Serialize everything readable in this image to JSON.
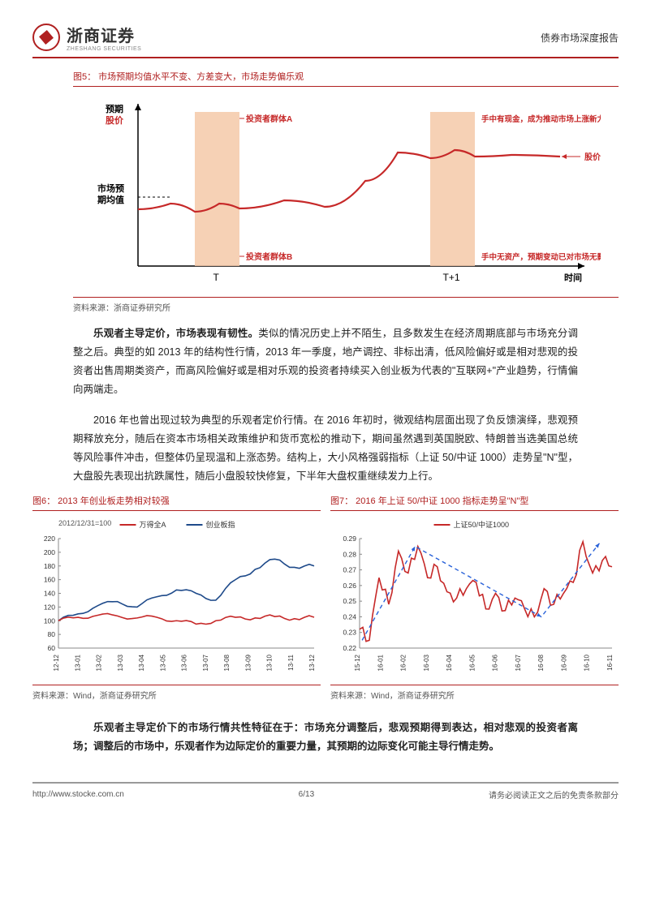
{
  "header": {
    "brand_cn": "浙商证券",
    "brand_en": "ZHESHANG SECURITIES",
    "report_type": "债券市场深度报告"
  },
  "fig5": {
    "title": "图5：  市场预期均值水平不变、方差变大，市场走势偏乐观",
    "y_label_top1": "预期",
    "y_label_top2": "股价",
    "y_label_mid1": "市场预",
    "y_label_mid2": "期均值",
    "x_label": "时间",
    "tick_T": "T",
    "tick_T1": "T+1",
    "label_groupA": "投资者群体A",
    "label_groupB": "投资者群体B",
    "legend_price": "股价P",
    "note_cash": "手中有现金，成为推动市场上涨新力量",
    "note_noasset": "手中无资产，预期变动已对市场无影响",
    "line_color": "#c62828",
    "rect_color": "#f4c9a8",
    "axis_color": "#000000",
    "source": "资料来源：浙商证券研究所"
  },
  "para1": "乐观者主导定价，市场表现有韧性。",
  "para1b": "类似的情况历史上并不陌生，且多数发生在经济周期底部与市场充分调整之后。典型的如 2013 年的结构性行情，2013 年一季度，地产调控、非标出清，低风险偏好或是相对悲观的投资者出售周期类资产，而高风险偏好或是相对乐观的投资者持续买入创业板为代表的\"互联网+\"产业趋势，行情偏向两端走。",
  "para2": "2016 年也曾出现过较为典型的乐观者定价行情。在 2016 年初时，微观结构层面出现了负反馈演绎，悲观预期释放充分，随后在资本市场相关政策维护和货币宽松的推动下，期间虽然遇到英国脱欧、特朗普当选美国总统等风险事件冲击，但整体仍呈现温和上涨态势。结构上，大小风格强弱指标（上证 50/中证 1000）走势呈\"N\"型，大盘股先表现出抗跌属性，随后小盘股较快修复，下半年大盘权重继续发力上行。",
  "fig6": {
    "title": "图6：  2013 年创业板走势相对较强",
    "base_note": "2012/12/31=100",
    "legend_a": "万得全A",
    "legend_b": "创业板指",
    "color_a": "#c62828",
    "color_b": "#1e4a8a",
    "ylim": [
      60,
      220
    ],
    "ytick_step": 20,
    "x_labels": [
      "12-12",
      "13-01",
      "13-02",
      "13-03",
      "13-04",
      "13-05",
      "13-06",
      "13-07",
      "13-08",
      "13-09",
      "13-10",
      "13-11",
      "13-12"
    ],
    "series_a": [
      100,
      105,
      108,
      107,
      104,
      105,
      100,
      95,
      100,
      105,
      104,
      106,
      103,
      105
    ],
    "series_b": [
      100,
      110,
      122,
      128,
      120,
      135,
      145,
      140,
      130,
      160,
      175,
      190,
      178,
      180
    ],
    "source": "资料来源：Wind，浙商证券研究所"
  },
  "fig7": {
    "title": "图7：  2016 年上证 50/中证 1000 指标走势呈\"N\"型",
    "legend": "上证50/中证1000",
    "color": "#c62828",
    "arrow_color": "#2962d9",
    "ylim": [
      0.22,
      0.29
    ],
    "yticks": [
      0.22,
      0.23,
      0.24,
      0.25,
      0.26,
      0.27,
      0.28,
      0.29
    ],
    "x_labels": [
      "15-12",
      "16-01",
      "16-02",
      "16-03",
      "16-04",
      "16-05",
      "16-06",
      "16-07",
      "16-08",
      "16-09",
      "16-10",
      "16-11"
    ],
    "series": [
      0.232,
      0.225,
      0.265,
      0.248,
      0.282,
      0.268,
      0.285,
      0.265,
      0.272,
      0.256,
      0.252,
      0.258,
      0.262,
      0.245,
      0.255,
      0.244,
      0.252,
      0.245,
      0.24,
      0.258,
      0.248,
      0.255,
      0.262,
      0.288,
      0.268,
      0.276,
      0.272
    ],
    "arrow_pts": [
      [
        0.01,
        0.225
      ],
      [
        0.22,
        0.285
      ],
      [
        0.72,
        0.24
      ],
      [
        0.95,
        0.287
      ]
    ],
    "source": "资料来源：Wind，浙商证券研究所"
  },
  "para3a": "乐观者主导定价下的市场行情共性特征在于：市场充分调整后，悲观预期得到表达，相对悲观的投资者离场；调整后的市场中，乐观者作为边际定价的重要力量，其预期的边际变化可能主导行情走势。",
  "footer": {
    "url": "http://www.stocke.com.cn",
    "page": "6/13",
    "disclaimer": "请务必阅读正文之后的免责条款部分"
  }
}
